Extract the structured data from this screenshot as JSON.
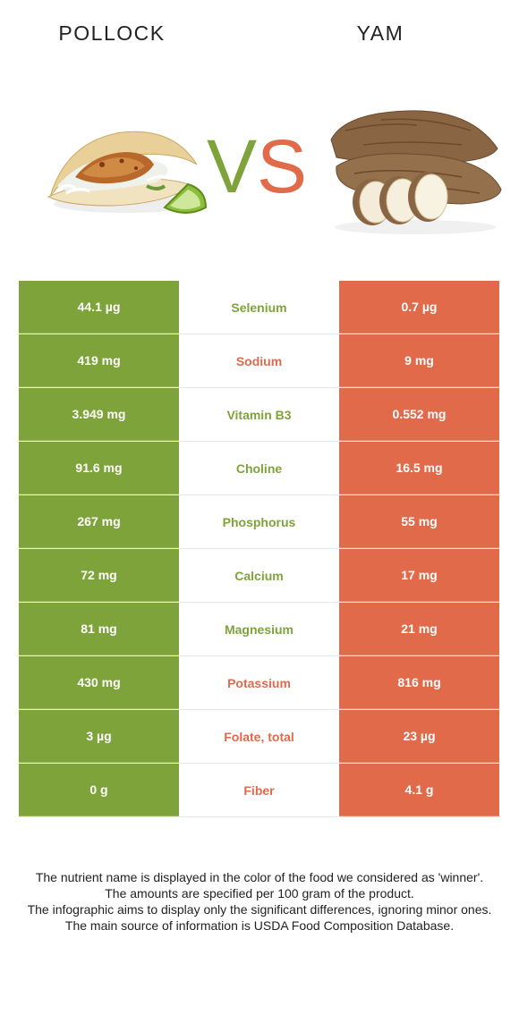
{
  "header": {
    "left_food": "POLLOCK",
    "right_food": "YAM",
    "vs_v": "V",
    "vs_s": "S"
  },
  "colors": {
    "winner_left": "#7ea33a",
    "winner_right": "#e06a4a"
  },
  "rows": [
    {
      "left": "44.1 µg",
      "nutrient": "Selenium",
      "right": "0.7 µg",
      "winner": "left"
    },
    {
      "left": "419 mg",
      "nutrient": "Sodium",
      "right": "9 mg",
      "winner": "right"
    },
    {
      "left": "3.949 mg",
      "nutrient": "Vitamin B3",
      "right": "0.552 mg",
      "winner": "left"
    },
    {
      "left": "91.6 mg",
      "nutrient": "Choline",
      "right": "16.5 mg",
      "winner": "left"
    },
    {
      "left": "267 mg",
      "nutrient": "Phosphorus",
      "right": "55 mg",
      "winner": "left"
    },
    {
      "left": "72 mg",
      "nutrient": "Calcium",
      "right": "17 mg",
      "winner": "left"
    },
    {
      "left": "81 mg",
      "nutrient": "Magnesium",
      "right": "21 mg",
      "winner": "left"
    },
    {
      "left": "430 mg",
      "nutrient": "Potassium",
      "right": "816 mg",
      "winner": "right"
    },
    {
      "left": "3 µg",
      "nutrient": "Folate, total",
      "right": "23 µg",
      "winner": "right"
    },
    {
      "left": "0 g",
      "nutrient": "Fiber",
      "right": "4.1 g",
      "winner": "right"
    }
  ],
  "footnote": [
    "The nutrient name is displayed in the color of the food we considered as 'winner'.",
    "The amounts are specified per 100 gram of the product.",
    "The infographic aims to display only the significant differences, ignoring minor ones.",
    "The main source of information is USDA Food Composition Database."
  ]
}
